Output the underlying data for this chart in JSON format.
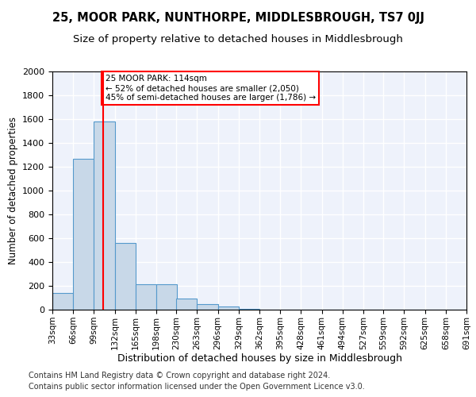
{
  "title1": "25, MOOR PARK, NUNTHORPE, MIDDLESBROUGH, TS7 0JJ",
  "title2": "Size of property relative to detached houses in Middlesbrough",
  "xlabel": "Distribution of detached houses by size in Middlesbrough",
  "ylabel": "Number of detached properties",
  "footer1": "Contains HM Land Registry data © Crown copyright and database right 2024.",
  "footer2": "Contains public sector information licensed under the Open Government Licence v3.0.",
  "bin_edges": [
    33,
    66,
    99,
    132,
    165,
    198,
    230,
    263,
    296,
    329,
    362,
    395,
    428,
    461,
    494,
    527,
    559,
    592,
    625,
    658,
    691
  ],
  "bar_heights": [
    140,
    1270,
    1580,
    560,
    215,
    215,
    95,
    50,
    25,
    5,
    2,
    2,
    1,
    0,
    0,
    0,
    0,
    0,
    0,
    0
  ],
  "bar_color": "#c8d8e8",
  "bar_edgecolor": "#5599cc",
  "property_size": 114,
  "red_line_color": "#ff0000",
  "annotation_line1": "25 MOOR PARK: 114sqm",
  "annotation_line2": "← 52% of detached houses are smaller (2,050)",
  "annotation_line3": "45% of semi-detached houses are larger (1,786) →",
  "annotation_box_color": "#ff0000",
  "ylim": [
    0,
    2000
  ],
  "yticks": [
    0,
    200,
    400,
    600,
    800,
    1000,
    1200,
    1400,
    1600,
    1800,
    2000
  ],
  "background_color": "#eef2fb",
  "grid_color": "#ffffff",
  "title1_fontsize": 10.5,
  "title2_fontsize": 9.5,
  "xlabel_fontsize": 9,
  "ylabel_fontsize": 8.5,
  "footer_fontsize": 7,
  "tick_fontsize": 7.5,
  "ytick_fontsize": 8
}
